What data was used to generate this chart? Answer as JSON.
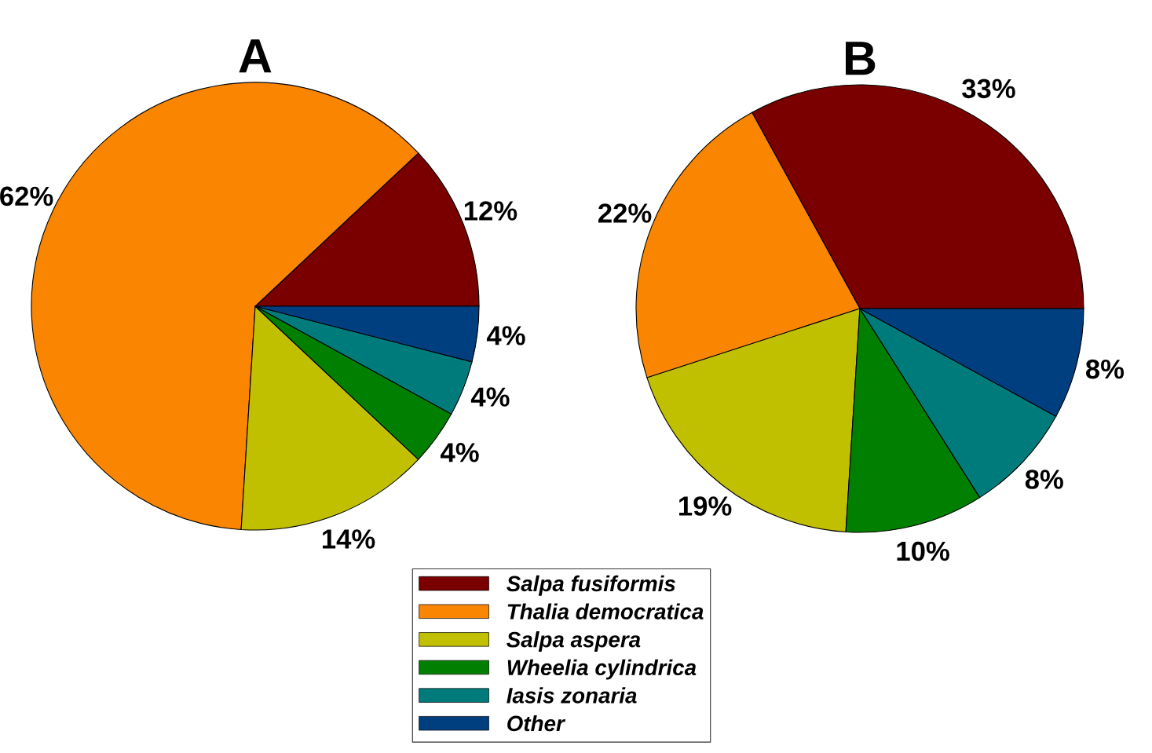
{
  "chart_data": [
    {
      "type": "pie",
      "title": "A",
      "categories": [
        "Salpa fusiformis",
        "Thalia democratica",
        "Salpa aspera",
        "Wheelia cylindrica",
        "Iasis zonaria",
        "Other"
      ],
      "values": [
        12,
        62,
        14,
        4,
        4,
        4
      ],
      "value_labels": [
        "12%",
        "62%",
        "14%",
        "4%",
        "4%",
        "4%"
      ],
      "colors": [
        "#7a0000",
        "#f98500",
        "#c0c000",
        "#007f00",
        "#007b7b",
        "#003f7f"
      ],
      "legend": "bottom"
    },
    {
      "type": "pie",
      "title": "B",
      "categories": [
        null,
        null,
        null,
        null,
        null,
        null
      ],
      "values": [
        33,
        22,
        19,
        10,
        8,
        8
      ],
      "value_labels": [
        "33%",
        "22%",
        "19%",
        "10%",
        "8%",
        "8%"
      ],
      "colors": [
        "#7a0000",
        "#f98500",
        "#c0c000",
        "#007f00",
        "#007b7b",
        "#003f7f"
      ]
    }
  ]
}
